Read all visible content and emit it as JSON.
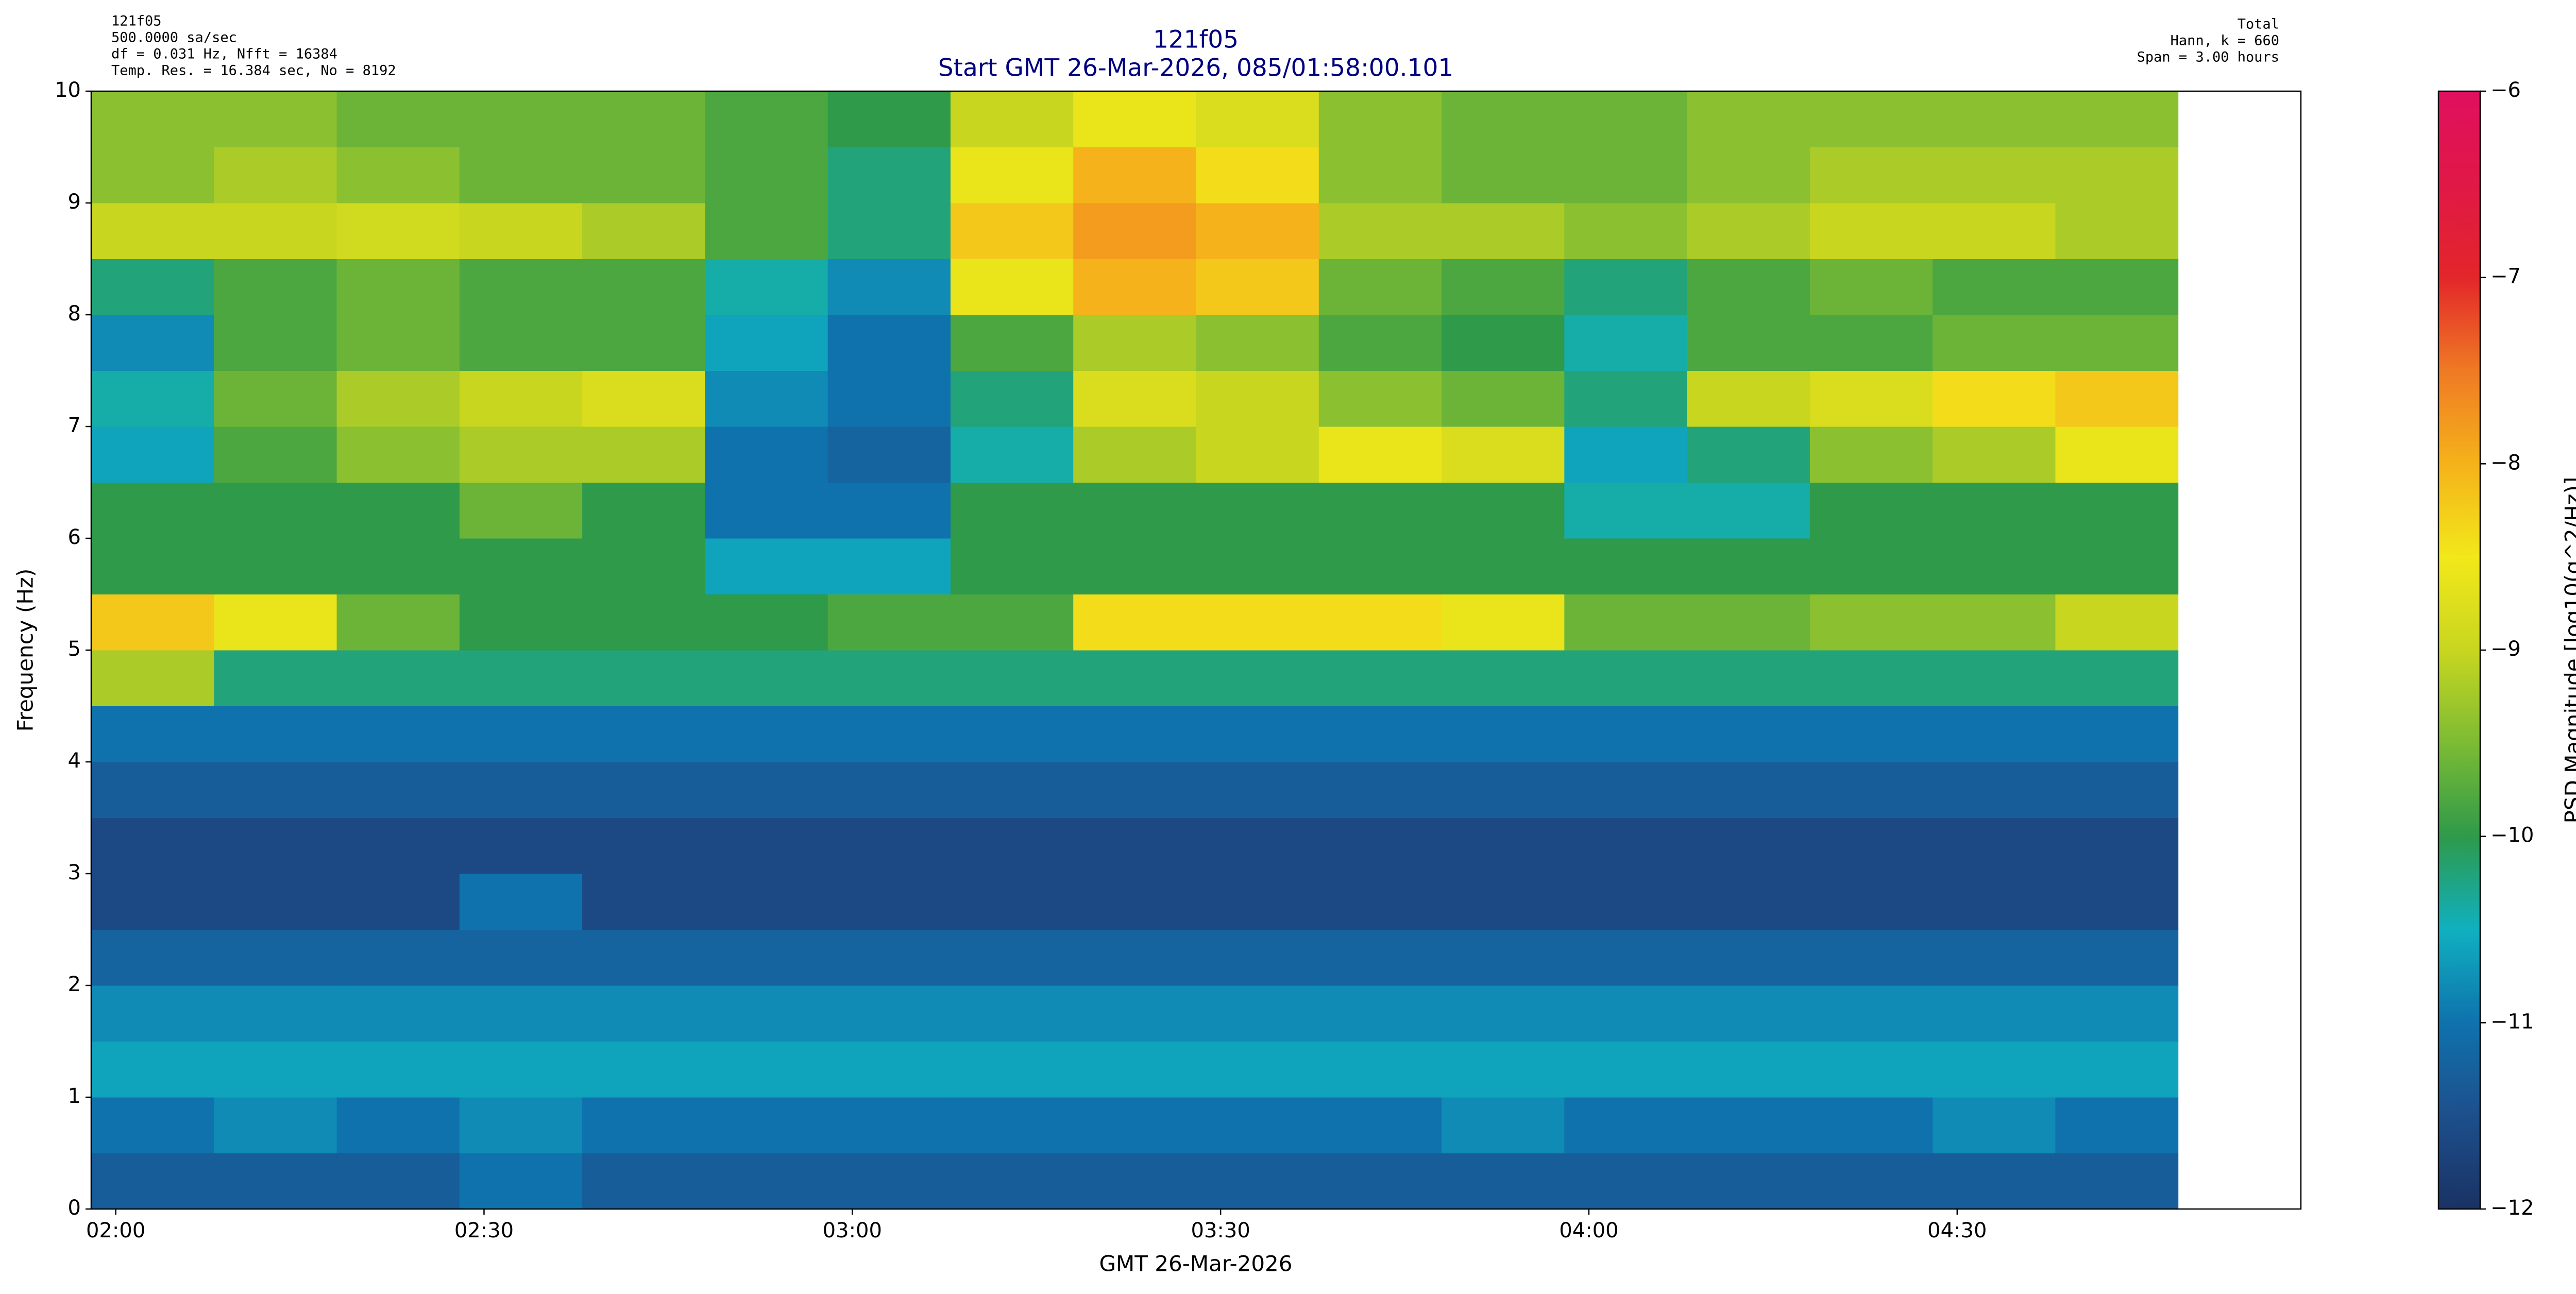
{
  "chart_data": {
    "type": "spectrogram",
    "title": "121f05",
    "subtitle": "Start GMT 26-Mar-2026, 085/01:58:00.101",
    "info_left": [
      "121f05",
      "500.0000 sa/sec",
      "df = 0.031 Hz,  Nfft = 16384",
      "Temp. Res. = 16.384 sec, No = 8192"
    ],
    "info_right": [
      "Total",
      "Hann, k = 660",
      "Span = 3.00 hours"
    ],
    "x_label": "GMT 26-Mar-2026",
    "y_label": "Frequency (Hz)",
    "colorbar_label": "PSD Magnitude [log10(g^2/Hz)]",
    "xlim": [
      "01:58",
      "04:58"
    ],
    "xticks": [
      "02:00",
      "02:30",
      "03:00",
      "03:30",
      "04:00",
      "04:30"
    ],
    "ylim": [
      0,
      10
    ],
    "yticks": [
      0,
      1,
      2,
      3,
      4,
      5,
      6,
      7,
      8,
      9,
      10
    ],
    "xbins": [
      "01:58",
      "02:08",
      "02:18",
      "02:28",
      "02:38",
      "02:48",
      "02:58",
      "03:08",
      "03:18",
      "03:28",
      "03:38",
      "03:48",
      "03:58",
      "04:08",
      "04:18",
      "04:28",
      "04:38",
      "04:48"
    ],
    "ybins": [
      0,
      0.5,
      1,
      1.5,
      2,
      2.5,
      3,
      3.5,
      4,
      4.5,
      5,
      5.5,
      6,
      6.5,
      7,
      7.5,
      8,
      8.5,
      9,
      9.5,
      10
    ],
    "clim": [
      -12,
      -6
    ],
    "cticks": [
      {
        "value": -6,
        "label": "−6"
      },
      {
        "value": -7,
        "label": "−7"
      },
      {
        "value": -8,
        "label": "−8"
      },
      {
        "value": -9,
        "label": "−9"
      },
      {
        "value": -10,
        "label": "−10"
      },
      {
        "value": -11,
        "label": "−11"
      },
      {
        "value": -12,
        "label": "−12"
      }
    ],
    "colormap": [
      "#1a3263",
      "#1d4f8c",
      "#0f72ad",
      "#10b0c0",
      "#2e9a4a",
      "#7cbb34",
      "#c8d620",
      "#f2e81a",
      "#f5b21a",
      "#ef7a24",
      "#e3262a",
      "#e01846",
      "#e0105f"
    ],
    "values": [
      [
        -11.3,
        -11.3,
        -11.3,
        -11.0,
        -11.3,
        -11.3,
        -11.3,
        -11.3,
        -11.3,
        -11.3,
        -11.3,
        -11.3,
        -11.3,
        -11.3,
        -11.3,
        -11.3,
        -11.3
      ],
      [
        -11.0,
        -10.8,
        -11.0,
        -10.8,
        -11.0,
        -11.0,
        -11.0,
        -11.0,
        -11.0,
        -11.0,
        -11.0,
        -10.8,
        -11.0,
        -11.0,
        -11.0,
        -10.8,
        -11.0
      ],
      [
        -10.6,
        -10.6,
        -10.6,
        -10.6,
        -10.6,
        -10.6,
        -10.6,
        -10.6,
        -10.6,
        -10.6,
        -10.6,
        -10.6,
        -10.6,
        -10.6,
        -10.6,
        -10.6,
        -10.6
      ],
      [
        -10.8,
        -10.8,
        -10.8,
        -10.8,
        -10.8,
        -10.8,
        -10.8,
        -10.8,
        -10.8,
        -10.8,
        -10.8,
        -10.8,
        -10.8,
        -10.8,
        -10.8,
        -10.8,
        -10.8
      ],
      [
        -11.2,
        -11.2,
        -11.2,
        -11.2,
        -11.2,
        -11.2,
        -11.2,
        -11.2,
        -11.2,
        -11.2,
        -11.2,
        -11.2,
        -11.2,
        -11.2,
        -11.2,
        -11.2,
        -11.2
      ],
      [
        -11.6,
        -11.6,
        -11.6,
        -11.0,
        -11.6,
        -11.6,
        -11.6,
        -11.6,
        -11.6,
        -11.6,
        -11.6,
        -11.6,
        -11.6,
        -11.6,
        -11.6,
        -11.6,
        -11.6
      ],
      [
        -11.6,
        -11.6,
        -11.6,
        -11.6,
        -11.6,
        -11.6,
        -11.6,
        -11.6,
        -11.6,
        -11.6,
        -11.6,
        -11.6,
        -11.6,
        -11.6,
        -11.6,
        -11.6,
        -11.6
      ],
      [
        -11.3,
        -11.3,
        -11.3,
        -11.3,
        -11.3,
        -11.3,
        -11.3,
        -11.3,
        -11.3,
        -11.3,
        -11.3,
        -11.3,
        -11.3,
        -11.3,
        -11.3,
        -11.3,
        -11.3
      ],
      [
        -11.0,
        -11.0,
        -11.0,
        -11.0,
        -11.0,
        -11.0,
        -11.0,
        -11.0,
        -11.0,
        -11.0,
        -11.0,
        -11.0,
        -11.0,
        -11.0,
        -11.0,
        -11.0,
        -11.0
      ],
      [
        -9.2,
        -10.2,
        -10.2,
        -10.2,
        -10.2,
        -10.2,
        -10.2,
        -10.2,
        -10.2,
        -10.2,
        -10.2,
        -10.2,
        -10.2,
        -10.2,
        -10.2,
        -10.2,
        -10.2
      ],
      [
        -8.2,
        -8.6,
        -9.6,
        -10.0,
        -10.0,
        -10.0,
        -9.8,
        -9.8,
        -8.4,
        -8.4,
        -8.4,
        -8.6,
        -9.6,
        -9.6,
        -9.4,
        -9.4,
        -9.0
      ],
      [
        -10.0,
        -10.0,
        -10.0,
        -10.0,
        -10.0,
        -10.6,
        -10.6,
        -10.0,
        -10.0,
        -10.0,
        -10.0,
        -10.0,
        -10.0,
        -10.0,
        -10.0,
        -10.0,
        -10.0
      ],
      [
        -10.0,
        -10.0,
        -10.0,
        -9.6,
        -10.0,
        -11.0,
        -11.0,
        -10.0,
        -10.0,
        -10.0,
        -10.0,
        -10.0,
        -10.4,
        -10.4,
        -10.0,
        -10.0,
        -10.0
      ],
      [
        -10.6,
        -9.8,
        -9.4,
        -9.2,
        -9.2,
        -11.0,
        -11.2,
        -10.4,
        -9.2,
        -9.0,
        -8.6,
        -8.8,
        -10.6,
        -10.2,
        -9.4,
        -9.2,
        -8.6
      ],
      [
        -10.4,
        -9.6,
        -9.2,
        -9.0,
        -8.8,
        -10.8,
        -11.0,
        -10.2,
        -8.8,
        -9.0,
        -9.4,
        -9.6,
        -10.2,
        -9.0,
        -8.8,
        -8.4,
        -8.2
      ],
      [
        -10.8,
        -9.8,
        -9.6,
        -9.8,
        -9.8,
        -10.6,
        -11.0,
        -9.8,
        -9.2,
        -9.4,
        -9.8,
        -10.0,
        -10.4,
        -9.8,
        -9.8,
        -9.6,
        -9.6
      ],
      [
        -10.2,
        -9.8,
        -9.6,
        -9.8,
        -9.8,
        -10.4,
        -10.8,
        -8.6,
        -8.0,
        -8.2,
        -9.6,
        -9.8,
        -10.2,
        -9.8,
        -9.6,
        -9.8,
        -9.8
      ],
      [
        -9.0,
        -9.0,
        -8.9,
        -9.0,
        -9.2,
        -9.8,
        -10.2,
        -8.2,
        -7.8,
        -8.0,
        -9.2,
        -9.2,
        -9.4,
        -9.2,
        -9.0,
        -9.0,
        -9.2
      ],
      [
        -9.4,
        -9.2,
        -9.4,
        -9.6,
        -9.6,
        -9.8,
        -10.2,
        -8.6,
        -8.0,
        -8.4,
        -9.4,
        -9.6,
        -9.6,
        -9.4,
        -9.2,
        -9.2,
        -9.2
      ],
      [
        -9.4,
        -9.4,
        -9.6,
        -9.6,
        -9.6,
        -9.8,
        -10.0,
        -9.0,
        -8.6,
        -8.8,
        -9.4,
        -9.6,
        -9.6,
        -9.4,
        -9.4,
        -9.4,
        -9.4
      ]
    ]
  }
}
